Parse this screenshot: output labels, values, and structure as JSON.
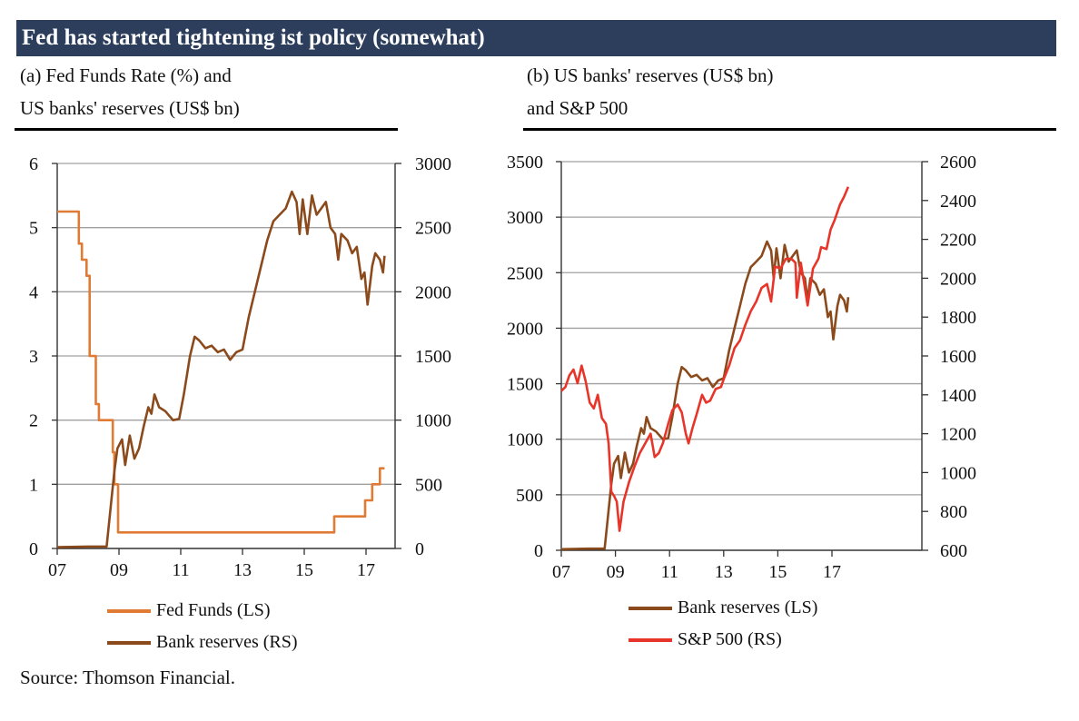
{
  "header": {
    "title": "Fed has started tightening ist policy (somewhat)"
  },
  "panels": [
    {
      "subtitle_line1": "(a) Fed Funds Rate (%) and",
      "subtitle_line2": "US banks' reserves (US$ bn)"
    },
    {
      "subtitle_line1": "(b) US banks' reserves (US$ bn)",
      "subtitle_line2": "and S&P 500"
    }
  ],
  "source": "Source: Thomson Financial.",
  "colors": {
    "fed_funds": "#e07b35",
    "bank_reserves": "#8b4a1c",
    "sp500": "#e8352a",
    "grid": "#a0a0a0",
    "title_bg": "#2c3e5c"
  },
  "chart_data": [
    {
      "type": "line",
      "title": "(a) Fed Funds Rate (%) and US banks' reserves (US$ bn)",
      "xlabel": "",
      "ylabel_left": "Fed Funds Rate (%)",
      "ylabel_right": "US banks' reserves (US$ bn)",
      "x_ticks": [
        "07",
        "09",
        "11",
        "13",
        "15",
        "17"
      ],
      "x_range": [
        2007,
        2018
      ],
      "y_left": {
        "range": [
          0,
          6
        ],
        "ticks": [
          "0",
          "1",
          "2",
          "3",
          "4",
          "5",
          "6"
        ]
      },
      "y_right": {
        "range": [
          0,
          3000
        ],
        "ticks": [
          "0",
          "500",
          "1000",
          "1500",
          "2000",
          "2500",
          "3000"
        ]
      },
      "grid": true,
      "legend": "bottom",
      "series": [
        {
          "name": "Fed Funds (LS)",
          "axis": "left",
          "color_key": "fed_funds",
          "step": true,
          "points": [
            [
              2007.0,
              5.25
            ],
            [
              2007.6,
              5.25
            ],
            [
              2007.7,
              4.75
            ],
            [
              2007.8,
              4.5
            ],
            [
              2007.95,
              4.25
            ],
            [
              2008.05,
              3.0
            ],
            [
              2008.25,
              2.25
            ],
            [
              2008.35,
              2.0
            ],
            [
              2008.75,
              2.0
            ],
            [
              2008.8,
              1.5
            ],
            [
              2008.85,
              1.0
            ],
            [
              2008.97,
              0.25
            ],
            [
              2015.95,
              0.25
            ],
            [
              2015.97,
              0.5
            ],
            [
              2016.95,
              0.5
            ],
            [
              2016.97,
              0.75
            ],
            [
              2017.2,
              1.0
            ],
            [
              2017.45,
              1.25
            ],
            [
              2017.6,
              1.25
            ]
          ]
        },
        {
          "name": "Bank reserves (RS)",
          "axis": "right",
          "color_key": "bank_reserves",
          "points": [
            [
              2007.0,
              10
            ],
            [
              2008.0,
              15
            ],
            [
              2008.6,
              15
            ],
            [
              2008.7,
              250
            ],
            [
              2008.85,
              600
            ],
            [
              2008.95,
              780
            ],
            [
              2009.1,
              850
            ],
            [
              2009.2,
              650
            ],
            [
              2009.35,
              880
            ],
            [
              2009.5,
              700
            ],
            [
              2009.65,
              780
            ],
            [
              2009.8,
              950
            ],
            [
              2009.95,
              1100
            ],
            [
              2010.05,
              1050
            ],
            [
              2010.15,
              1200
            ],
            [
              2010.3,
              1100
            ],
            [
              2010.5,
              1070
            ],
            [
              2010.75,
              1000
            ],
            [
              2010.95,
              1010
            ],
            [
              2011.1,
              1200
            ],
            [
              2011.3,
              1500
            ],
            [
              2011.45,
              1650
            ],
            [
              2011.6,
              1620
            ],
            [
              2011.8,
              1560
            ],
            [
              2012.0,
              1580
            ],
            [
              2012.2,
              1530
            ],
            [
              2012.4,
              1550
            ],
            [
              2012.6,
              1470
            ],
            [
              2012.8,
              1530
            ],
            [
              2013.0,
              1550
            ],
            [
              2013.2,
              1800
            ],
            [
              2013.4,
              2000
            ],
            [
              2013.6,
              2200
            ],
            [
              2013.8,
              2400
            ],
            [
              2014.0,
              2550
            ],
            [
              2014.2,
              2600
            ],
            [
              2014.4,
              2650
            ],
            [
              2014.6,
              2780
            ],
            [
              2014.75,
              2700
            ],
            [
              2014.85,
              2450
            ],
            [
              2014.95,
              2720
            ],
            [
              2015.1,
              2450
            ],
            [
              2015.25,
              2750
            ],
            [
              2015.4,
              2600
            ],
            [
              2015.55,
              2650
            ],
            [
              2015.7,
              2700
            ],
            [
              2015.85,
              2500
            ],
            [
              2016.0,
              2450
            ],
            [
              2016.1,
              2250
            ],
            [
              2016.2,
              2450
            ],
            [
              2016.4,
              2400
            ],
            [
              2016.55,
              2300
            ],
            [
              2016.7,
              2350
            ],
            [
              2016.85,
              2100
            ],
            [
              2016.95,
              2150
            ],
            [
              2017.05,
              1900
            ],
            [
              2017.2,
              2200
            ],
            [
              2017.3,
              2300
            ],
            [
              2017.45,
              2250
            ],
            [
              2017.55,
              2150
            ],
            [
              2017.6,
              2280
            ]
          ]
        }
      ]
    },
    {
      "type": "line",
      "title": "(b) US banks' reserves (US$ bn) and S&P 500",
      "xlabel": "",
      "ylabel_left": "US banks' reserves (US$ bn)",
      "ylabel_right": "S&P 500",
      "x_ticks": [
        "07",
        "09",
        "11",
        "13",
        "15",
        "17"
      ],
      "x_range": [
        2007,
        2018
      ],
      "y_left": {
        "range": [
          0,
          3500
        ],
        "ticks": [
          "0",
          "500",
          "1000",
          "1500",
          "2000",
          "2500",
          "3000",
          "3500"
        ]
      },
      "y_right": {
        "range": [
          600,
          2600
        ],
        "ticks": [
          "600",
          "800",
          "1000",
          "1200",
          "1400",
          "1600",
          "1800",
          "2000",
          "2200",
          "2400",
          "2600"
        ]
      },
      "grid": true,
      "legend": "bottom",
      "series": [
        {
          "name": "Bank reserves (LS)",
          "axis": "left",
          "color_key": "bank_reserves",
          "points": [
            [
              2007.0,
              10
            ],
            [
              2008.0,
              15
            ],
            [
              2008.6,
              15
            ],
            [
              2008.7,
              250
            ],
            [
              2008.85,
              600
            ],
            [
              2008.95,
              780
            ],
            [
              2009.1,
              850
            ],
            [
              2009.2,
              650
            ],
            [
              2009.35,
              880
            ],
            [
              2009.5,
              700
            ],
            [
              2009.65,
              780
            ],
            [
              2009.8,
              950
            ],
            [
              2009.95,
              1100
            ],
            [
              2010.05,
              1050
            ],
            [
              2010.15,
              1200
            ],
            [
              2010.3,
              1100
            ],
            [
              2010.5,
              1070
            ],
            [
              2010.75,
              1000
            ],
            [
              2010.95,
              1010
            ],
            [
              2011.1,
              1200
            ],
            [
              2011.3,
              1500
            ],
            [
              2011.45,
              1650
            ],
            [
              2011.6,
              1620
            ],
            [
              2011.8,
              1560
            ],
            [
              2012.0,
              1580
            ],
            [
              2012.2,
              1530
            ],
            [
              2012.4,
              1550
            ],
            [
              2012.6,
              1470
            ],
            [
              2012.8,
              1530
            ],
            [
              2013.0,
              1550
            ],
            [
              2013.2,
              1800
            ],
            [
              2013.4,
              2000
            ],
            [
              2013.6,
              2200
            ],
            [
              2013.8,
              2400
            ],
            [
              2014.0,
              2550
            ],
            [
              2014.2,
              2600
            ],
            [
              2014.4,
              2650
            ],
            [
              2014.6,
              2780
            ],
            [
              2014.75,
              2700
            ],
            [
              2014.85,
              2450
            ],
            [
              2014.95,
              2720
            ],
            [
              2015.1,
              2450
            ],
            [
              2015.25,
              2750
            ],
            [
              2015.4,
              2600
            ],
            [
              2015.55,
              2650
            ],
            [
              2015.7,
              2700
            ],
            [
              2015.85,
              2500
            ],
            [
              2016.0,
              2450
            ],
            [
              2016.1,
              2250
            ],
            [
              2016.2,
              2450
            ],
            [
              2016.4,
              2400
            ],
            [
              2016.55,
              2300
            ],
            [
              2016.7,
              2350
            ],
            [
              2016.85,
              2100
            ],
            [
              2016.95,
              2150
            ],
            [
              2017.05,
              1900
            ],
            [
              2017.2,
              2200
            ],
            [
              2017.3,
              2300
            ],
            [
              2017.45,
              2250
            ],
            [
              2017.55,
              2150
            ],
            [
              2017.6,
              2280
            ]
          ]
        },
        {
          "name": "S&P 500 (RS)",
          "axis": "right",
          "color_key": "sp500",
          "points": [
            [
              2007.0,
              1420
            ],
            [
              2007.15,
              1440
            ],
            [
              2007.3,
              1500
            ],
            [
              2007.45,
              1530
            ],
            [
              2007.6,
              1460
            ],
            [
              2007.75,
              1550
            ],
            [
              2007.9,
              1470
            ],
            [
              2008.05,
              1360
            ],
            [
              2008.2,
              1330
            ],
            [
              2008.35,
              1400
            ],
            [
              2008.5,
              1280
            ],
            [
              2008.65,
              1250
            ],
            [
              2008.75,
              1150
            ],
            [
              2008.85,
              900
            ],
            [
              2008.95,
              880
            ],
            [
              2009.05,
              850
            ],
            [
              2009.15,
              700
            ],
            [
              2009.3,
              850
            ],
            [
              2009.5,
              950
            ],
            [
              2009.7,
              1030
            ],
            [
              2009.9,
              1100
            ],
            [
              2010.1,
              1150
            ],
            [
              2010.3,
              1200
            ],
            [
              2010.45,
              1080
            ],
            [
              2010.6,
              1100
            ],
            [
              2010.75,
              1150
            ],
            [
              2010.95,
              1250
            ],
            [
              2011.1,
              1320
            ],
            [
              2011.3,
              1350
            ],
            [
              2011.45,
              1310
            ],
            [
              2011.6,
              1200
            ],
            [
              2011.7,
              1150
            ],
            [
              2011.85,
              1230
            ],
            [
              2012.0,
              1300
            ],
            [
              2012.2,
              1400
            ],
            [
              2012.35,
              1360
            ],
            [
              2012.5,
              1370
            ],
            [
              2012.7,
              1430
            ],
            [
              2012.9,
              1440
            ],
            [
              2013.0,
              1480
            ],
            [
              2013.2,
              1550
            ],
            [
              2013.4,
              1640
            ],
            [
              2013.6,
              1680
            ],
            [
              2013.8,
              1760
            ],
            [
              2014.0,
              1830
            ],
            [
              2014.2,
              1880
            ],
            [
              2014.4,
              1950
            ],
            [
              2014.6,
              1970
            ],
            [
              2014.75,
              1880
            ],
            [
              2014.9,
              2060
            ],
            [
              2015.1,
              2050
            ],
            [
              2015.3,
              2100
            ],
            [
              2015.5,
              2100
            ],
            [
              2015.65,
              2080
            ],
            [
              2015.7,
              1900
            ],
            [
              2015.85,
              2080
            ],
            [
              2016.0,
              1950
            ],
            [
              2016.1,
              1860
            ],
            [
              2016.3,
              2050
            ],
            [
              2016.5,
              2100
            ],
            [
              2016.6,
              2160
            ],
            [
              2016.8,
              2150
            ],
            [
              2016.95,
              2250
            ],
            [
              2017.1,
              2300
            ],
            [
              2017.3,
              2380
            ],
            [
              2017.45,
              2420
            ],
            [
              2017.6,
              2470
            ]
          ]
        }
      ]
    }
  ]
}
